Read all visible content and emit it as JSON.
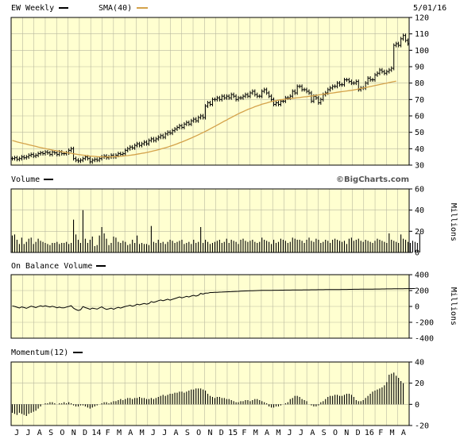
{
  "chart_data": [
    {
      "type": "bar",
      "subtype": "ohlc",
      "legend": {
        "symbol_label": "EW Weekly",
        "sma_label": "SMA(40)",
        "sma_color": "#d4a24a"
      },
      "date_label": "5/01/16",
      "watermark": "©BigCharts.com",
      "ylim": [
        30,
        120
      ],
      "yticks": [
        30,
        40,
        50,
        60,
        70,
        80,
        90,
        100,
        110,
        120
      ],
      "close": [
        34,
        34.5,
        33.5,
        34,
        35,
        34.5,
        35,
        36,
        36.5,
        35.5,
        36,
        37,
        37.5,
        37,
        38,
        37.5,
        36.5,
        38,
        37.5,
        36.5,
        38,
        37,
        37,
        37.5,
        39,
        40,
        34,
        33,
        32.5,
        33,
        34,
        35,
        34,
        32,
        33,
        33.5,
        33,
        34,
        35,
        35.5,
        34.5,
        35,
        36,
        35,
        36,
        37,
        36.5,
        37,
        39,
        40,
        41,
        40.5,
        42,
        43,
        42,
        43,
        44,
        43,
        45,
        46,
        45,
        46,
        47,
        48,
        47,
        49,
        50,
        49.5,
        51,
        52,
        53,
        54,
        53,
        55,
        56,
        55,
        57,
        58,
        57,
        59,
        60,
        59,
        66,
        68,
        67,
        70,
        70,
        71,
        70,
        72,
        71,
        72,
        71,
        73,
        72,
        70,
        71,
        71,
        72,
        73,
        72,
        74,
        75,
        73,
        72,
        72,
        75,
        76,
        74,
        72,
        70,
        67,
        68,
        67,
        69,
        69,
        71,
        71,
        72,
        75,
        74,
        78,
        78,
        76,
        76,
        75,
        74,
        69,
        72,
        71,
        68,
        70,
        73,
        74,
        76,
        77,
        78,
        78,
        80,
        79,
        79,
        82,
        82,
        81,
        80,
        80,
        81,
        76,
        77,
        77,
        80,
        83,
        82,
        82,
        85,
        86,
        88,
        87,
        86,
        87,
        88,
        89,
        103,
        104,
        103,
        107,
        109,
        106,
        104
      ],
      "sma": [
        45.0,
        44.6,
        44.2,
        43.8,
        43.5,
        43.1,
        42.8,
        42.4,
        42.1,
        41.7,
        41.4,
        41.0,
        40.7,
        40.4,
        40.1,
        39.8,
        39.5,
        39.2,
        38.9,
        38.7,
        38.4,
        38.2,
        37.9,
        37.7,
        37.4,
        37.2,
        36.9,
        36.7,
        36.5,
        36.3,
        36.1,
        35.9,
        35.7,
        35.5,
        35.4,
        35.3,
        35.2,
        35.1,
        35.1,
        35.1,
        35.0,
        35.0,
        35.1,
        35.1,
        35.2,
        35.3,
        35.4,
        35.5,
        35.7,
        35.8,
        36.0,
        36.2,
        36.4,
        36.7,
        36.9,
        37.2,
        37.4,
        37.7,
        38.0,
        38.3,
        38.7,
        39.0,
        39.4,
        39.8,
        40.2,
        40.6,
        41.0,
        41.5,
        42.0,
        42.5,
        43.0,
        43.6,
        44.1,
        44.7,
        45.3,
        45.9,
        46.5,
        47.2,
        47.8,
        48.5,
        49.2,
        49.9,
        50.6,
        51.3,
        52.1,
        52.9,
        53.6,
        54.4,
        55.2,
        56.0,
        56.8,
        57.5,
        58.3,
        59.1,
        59.8,
        60.6,
        61.3,
        62.0,
        62.6,
        63.3,
        63.9,
        64.5,
        65.0,
        65.6,
        66.1,
        66.6,
        67.1,
        67.5,
        67.9,
        68.3,
        68.7,
        69.0,
        69.3,
        69.6,
        69.8,
        70.0,
        70.2,
        70.4,
        70.6,
        70.7,
        70.9,
        71.1,
        71.2,
        71.4,
        71.6,
        71.7,
        71.9,
        72.1,
        72.3,
        72.5,
        72.8,
        73.0,
        73.2,
        73.4,
        73.6,
        73.8,
        74.0,
        74.2,
        74.4,
        74.6,
        74.8,
        75.0,
        75.2,
        75.4,
        75.6,
        75.8,
        76.1,
        76.4,
        76.7,
        77.0,
        77.3,
        77.6,
        77.9,
        78.2,
        78.5,
        78.8,
        79.1,
        79.4,
        79.7,
        80.0,
        80.3,
        80.6,
        80.9,
        81.2
      ]
    },
    {
      "type": "bar",
      "title": "Volume",
      "ylabel": "Millions",
      "ylim": [
        0,
        60
      ],
      "yticks": [
        0,
        20,
        40,
        60
      ],
      "values": [
        16,
        17,
        12,
        8,
        14,
        8,
        10,
        13,
        14,
        8,
        10,
        13,
        11,
        10,
        9,
        8,
        7,
        9,
        9,
        10,
        8,
        9,
        9,
        10,
        8,
        9,
        31,
        17,
        12,
        9,
        40,
        13,
        9,
        12,
        15,
        6,
        7,
        16,
        24,
        18,
        13,
        7,
        9,
        15,
        14,
        10,
        9,
        11,
        10,
        7,
        8,
        12,
        9,
        16,
        8,
        9,
        8,
        8,
        7,
        25,
        10,
        9,
        12,
        9,
        10,
        8,
        10,
        12,
        11,
        9,
        10,
        11,
        12,
        8,
        9,
        10,
        8,
        12,
        9,
        10,
        24,
        9,
        12,
        10,
        8,
        9,
        10,
        11,
        12,
        9,
        10,
        13,
        9,
        12,
        11,
        10,
        8,
        12,
        13,
        11,
        10,
        11,
        12,
        10,
        9,
        10,
        14,
        12,
        11,
        10,
        8,
        12,
        9,
        10,
        13,
        12,
        11,
        9,
        10,
        14,
        13,
        12,
        12,
        11,
        9,
        12,
        14,
        11,
        10,
        13,
        12,
        9,
        10,
        12,
        11,
        9,
        12,
        13,
        12,
        11,
        10,
        11,
        8,
        13,
        14,
        11,
        12,
        13,
        11,
        10,
        12,
        11,
        10,
        9,
        11,
        13,
        12,
        11,
        10,
        9,
        18,
        12,
        11,
        10,
        9,
        17,
        13,
        12,
        10,
        9,
        11,
        10,
        9,
        18
      ],
      "title_note": ""
    },
    {
      "type": "line",
      "title": "On Balance Volume",
      "ylabel": "Millions",
      "ylim": [
        -400,
        400
      ],
      "yticks": [
        -400,
        -200,
        0,
        200,
        400
      ],
      "values": [
        7,
        0,
        -10,
        -20,
        -6,
        -14,
        -24,
        -11,
        3,
        -5,
        -15,
        -2,
        9,
        -1,
        8,
        0,
        -7,
        2,
        -7,
        -17,
        -9,
        -18,
        -18,
        -8,
        0,
        9,
        -22,
        -39,
        -51,
        -42,
        -2,
        -15,
        -24,
        -36,
        -21,
        -27,
        -34,
        -18,
        -6,
        -24,
        -37,
        -30,
        -21,
        -36,
        -22,
        -12,
        -21,
        -10,
        0,
        7,
        15,
        3,
        12,
        28,
        20,
        29,
        37,
        29,
        36,
        61,
        51,
        60,
        72,
        81,
        71,
        81,
        91,
        79,
        90,
        99,
        109,
        120,
        108,
        117,
        127,
        119,
        131,
        140,
        130,
        140,
        164,
        155,
        167,
        167,
        175,
        175,
        177,
        178,
        180,
        181,
        183,
        184,
        185,
        186,
        188,
        189,
        190,
        192,
        194,
        195,
        196,
        197,
        198,
        199,
        200,
        201,
        202,
        202,
        203,
        203,
        203,
        204,
        204,
        204,
        205,
        205,
        206,
        206,
        206,
        207,
        207,
        208,
        208,
        208,
        209,
        209,
        209,
        210,
        210,
        210,
        211,
        211,
        211,
        212,
        212,
        212,
        213,
        213,
        213,
        213,
        214,
        214,
        214,
        215,
        215,
        216,
        216,
        216,
        217,
        217,
        217,
        218,
        218,
        218,
        219,
        219,
        219,
        220,
        220,
        221,
        221,
        221,
        222,
        222,
        222,
        223,
        223,
        224,
        224,
        225,
        225,
        225
      ]
    },
    {
      "type": "bar",
      "title": "Momentum(12)",
      "ylim": [
        -20,
        40
      ],
      "yticks": [
        -20,
        0,
        20,
        40
      ],
      "values": [
        -8,
        -9,
        -10,
        -8,
        -9,
        -10,
        -11,
        -9,
        -8,
        -7,
        -6,
        -4,
        -2,
        0,
        1,
        1,
        2,
        2,
        1,
        0,
        1,
        1,
        2,
        1,
        2,
        1,
        -1,
        -2,
        -2,
        -1,
        -1,
        -2,
        -3,
        -4,
        -3,
        -2,
        -1,
        0,
        1,
        2,
        2,
        1,
        2,
        3,
        3,
        4,
        5,
        4,
        5,
        6,
        6,
        5,
        6,
        6,
        7,
        6,
        6,
        5,
        5,
        6,
        5,
        6,
        7,
        8,
        9,
        8,
        9,
        10,
        10,
        11,
        11,
        12,
        12,
        11,
        12,
        13,
        14,
        14,
        15,
        15,
        15,
        14,
        13,
        10,
        8,
        7,
        6,
        7,
        7,
        6,
        6,
        5,
        5,
        4,
        3,
        2,
        2,
        3,
        3,
        4,
        4,
        3,
        4,
        5,
        5,
        4,
        3,
        2,
        1,
        -2,
        -3,
        -3,
        -2,
        -2,
        -1,
        0,
        1,
        2,
        5,
        6,
        8,
        8,
        7,
        5,
        4,
        3,
        0,
        -1,
        -2,
        -2,
        -1,
        2,
        3,
        5,
        7,
        8,
        8,
        9,
        9,
        8,
        8,
        9,
        10,
        10,
        9,
        7,
        4,
        3,
        3,
        4,
        6,
        8,
        10,
        12,
        13,
        14,
        15,
        16,
        18,
        21,
        28,
        29,
        30,
        27,
        25,
        22,
        20
      ],
      "xlabels": [
        "J",
        "J",
        "A",
        "S",
        "O",
        "N",
        "D",
        "14",
        "F",
        "M",
        "A",
        "M",
        "J",
        "J",
        "A",
        "S",
        "O",
        "N",
        "D",
        "15",
        "F",
        "M",
        "A",
        "M",
        "J",
        "J",
        "A",
        "S",
        "O",
        "N",
        "D",
        "16",
        "F",
        "M",
        "A"
      ]
    }
  ]
}
